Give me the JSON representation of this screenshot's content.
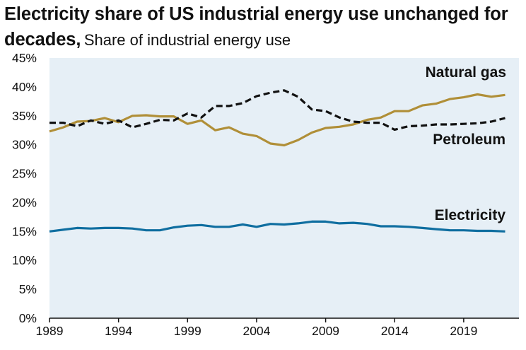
{
  "title": "Electricity share of US industrial energy use unchanged for decades,",
  "subtitle": "Share of industrial energy use",
  "colors": {
    "plot_background": "#e6eff6",
    "natural_gas": "#b08f38",
    "petroleum": "#111111",
    "electricity": "#0f6ea0"
  },
  "chart_data": {
    "type": "line",
    "title": "Electricity share of US industrial energy use unchanged for decades",
    "subtitle": "Share of industrial energy use",
    "xlabel": "",
    "ylabel": "",
    "xlim": [
      1989,
      2023
    ],
    "ylim": [
      0,
      45
    ],
    "x_ticks": [
      1989,
      1994,
      1999,
      2004,
      2009,
      2014,
      2019
    ],
    "x_tick_labels": [
      "1989",
      "1994",
      "1999",
      "2004",
      "2009",
      "2014",
      "2019"
    ],
    "y_ticks": [
      0,
      5,
      10,
      15,
      20,
      25,
      30,
      35,
      40,
      45
    ],
    "y_tick_labels": [
      "0%",
      "5%",
      "10%",
      "15%",
      "20%",
      "25%",
      "30%",
      "35%",
      "40%",
      "45%"
    ],
    "grid": false,
    "x": [
      1989,
      1990,
      1991,
      1992,
      1993,
      1994,
      1995,
      1996,
      1997,
      1998,
      1999,
      2000,
      2001,
      2002,
      2003,
      2004,
      2005,
      2006,
      2007,
      2008,
      2009,
      2010,
      2011,
      2012,
      2013,
      2014,
      2015,
      2016,
      2017,
      2018,
      2019,
      2020,
      2021,
      2022
    ],
    "series": [
      {
        "name": "Natural gas",
        "style": "solid",
        "values": [
          32.3,
          33.0,
          34.0,
          34.1,
          34.6,
          33.9,
          35.0,
          35.1,
          34.9,
          34.9,
          33.6,
          34.2,
          32.5,
          33.0,
          31.9,
          31.5,
          30.2,
          29.9,
          30.8,
          32.1,
          32.9,
          33.1,
          33.5,
          34.3,
          34.7,
          35.8,
          35.8,
          36.8,
          37.1,
          37.9,
          38.2,
          38.7,
          38.3,
          38.6
        ]
      },
      {
        "name": "Petroleum",
        "style": "dashed",
        "values": [
          33.8,
          33.8,
          33.2,
          34.2,
          33.6,
          34.2,
          33.0,
          33.6,
          34.3,
          34.2,
          35.4,
          34.7,
          36.7,
          36.7,
          37.2,
          38.4,
          39.0,
          39.4,
          38.3,
          36.1,
          35.8,
          34.7,
          34.0,
          33.8,
          33.8,
          32.6,
          33.2,
          33.3,
          33.5,
          33.5,
          33.6,
          33.7,
          34.0,
          34.6
        ]
      },
      {
        "name": "Electricity",
        "style": "solid",
        "values": [
          15.0,
          15.3,
          15.6,
          15.5,
          15.6,
          15.6,
          15.5,
          15.2,
          15.2,
          15.7,
          16.0,
          16.1,
          15.8,
          15.8,
          16.2,
          15.8,
          16.3,
          16.2,
          16.4,
          16.7,
          16.7,
          16.4,
          16.5,
          16.3,
          15.9,
          15.9,
          15.8,
          15.6,
          15.4,
          15.2,
          15.2,
          15.1,
          15.1,
          15.0
        ]
      }
    ],
    "annotations": [
      "Natural gas",
      "Petroleum",
      "Electricity"
    ]
  }
}
